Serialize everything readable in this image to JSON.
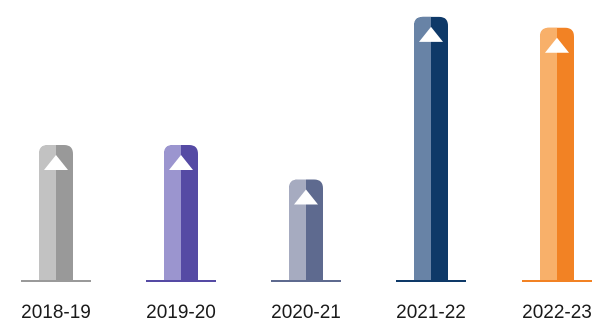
{
  "chart_data": {
    "type": "bar",
    "categories": [
      "2018-19",
      "2019-20",
      "2020-21",
      "2021-22",
      "2022-23"
    ],
    "values": [
      138,
      138,
      103,
      268,
      257
    ],
    "ylim": [
      0,
      275
    ],
    "grid": false,
    "legend": "none",
    "bar_colors": [
      {
        "light": "#c2c2c2",
        "dark": "#999999",
        "base": "#9a9a9a"
      },
      {
        "light": "#9b95cf",
        "dark": "#554aa4",
        "base": "#554aa4"
      },
      {
        "light": "#a6abc0",
        "dark": "#5e6a8f",
        "base": "#5e6a8f"
      },
      {
        "light": "#6883a6",
        "dark": "#0e3968",
        "base": "#0e3968"
      },
      {
        "light": "#f8b06a",
        "dark": "#f28224",
        "base": "#f28224"
      }
    ],
    "marker_color": "#ffffff"
  }
}
